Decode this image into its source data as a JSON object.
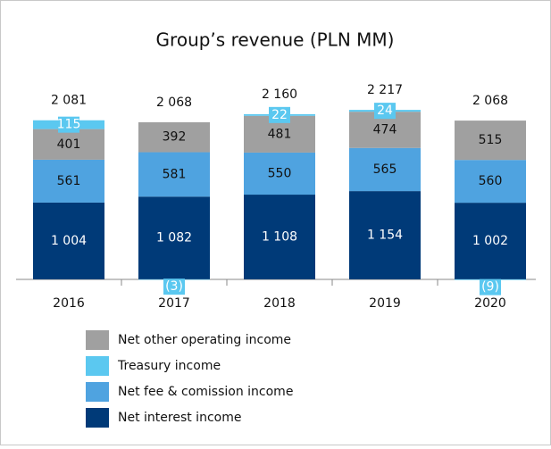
{
  "chart_data": {
    "type": "stacked_bar",
    "title": "Group’s revenue (PLN MM)",
    "categories": [
      "2016",
      "2017",
      "2018",
      "2019",
      "2020"
    ],
    "series": [
      {
        "name": "Net other operating income",
        "color": "#a0a0a0",
        "values": [
          401,
          392,
          481,
          474,
          515
        ]
      },
      {
        "name": "Treasury income",
        "color": "#5bc8f0",
        "values": [
          115,
          -3,
          22,
          24,
          -9
        ],
        "value_labels": [
          "115",
          "(3)",
          "22",
          "24",
          "(9)"
        ]
      },
      {
        "name": "Net fee & comission income",
        "color": "#4fa3e0",
        "values": [
          561,
          581,
          550,
          565,
          560
        ]
      },
      {
        "name": "Net interest income",
        "color": "#003a78",
        "values": [
          1004,
          1082,
          1108,
          1154,
          1002
        ],
        "value_labels": [
          "1 004",
          "1 082",
          "1 108",
          "1 154",
          "1 002"
        ]
      }
    ],
    "stack_order": [
      "Net interest income",
      "Net fee & comission income",
      "Net other operating income",
      "Treasury income"
    ],
    "totals": {
      "values": [
        2081,
        2068,
        2160,
        2217,
        2068
      ],
      "value_labels": [
        "2 081",
        "2 068",
        "2 160",
        "2 217",
        "2 068"
      ]
    },
    "ylim": [
      -200,
      2300
    ]
  }
}
